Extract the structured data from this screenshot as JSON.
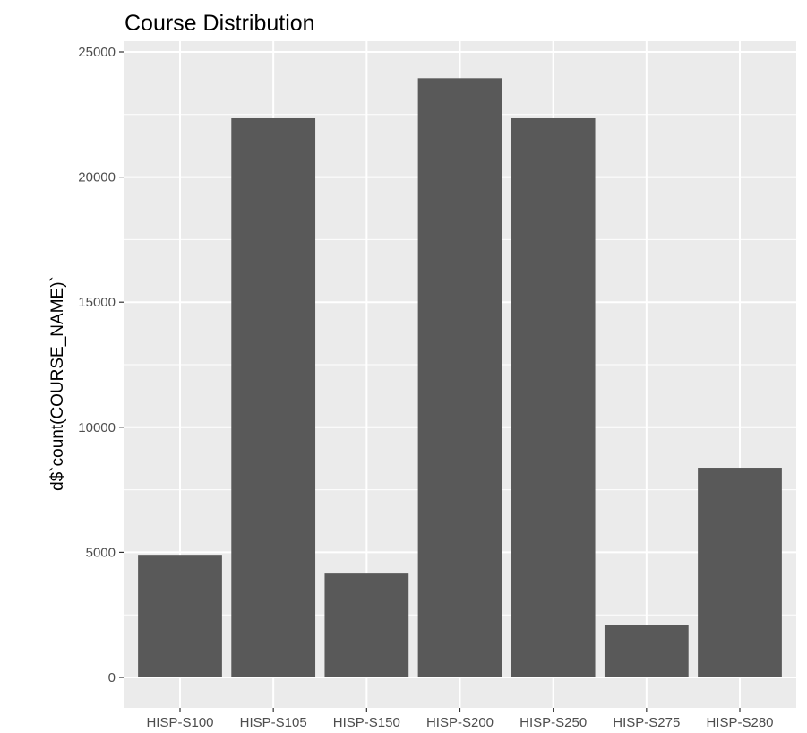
{
  "chart_data": {
    "type": "bar",
    "title": "Course Distribution",
    "xlabel": "",
    "ylabel": "d$`count(COURSE_NAME)`",
    "categories": [
      "HISP-S100",
      "HISP-S105",
      "HISP-S150",
      "HISP-S200",
      "HISP-S250",
      "HISP-S275",
      "HISP-S280"
    ],
    "values": [
      4900,
      22350,
      4150,
      23950,
      22350,
      2100,
      8380
    ],
    "ylim": [
      0,
      25000
    ],
    "yticks": [
      0,
      5000,
      10000,
      15000,
      20000,
      25000
    ],
    "grid": true,
    "colors": {
      "panel_background": "#ebebeb",
      "gridline": "#ffffff",
      "bar_fill": "#595959",
      "tick_text": "#4d4d4d"
    }
  }
}
